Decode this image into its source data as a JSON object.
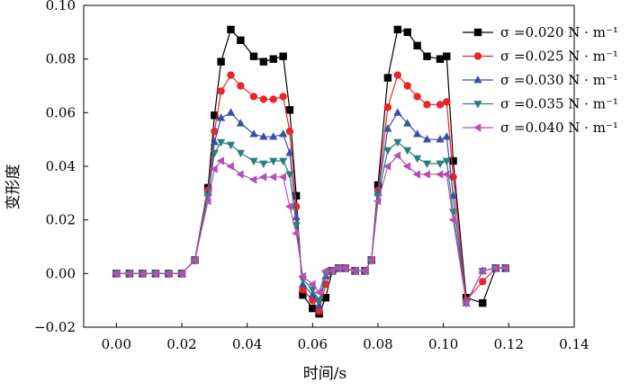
{
  "chart_data": {
    "type": "line",
    "title": "",
    "xlabel": "时间/s",
    "ylabel": "变形度",
    "xlim": [
      -0.01,
      0.14
    ],
    "ylim": [
      -0.02,
      0.1
    ],
    "xticks": [
      0.0,
      0.02,
      0.04,
      0.06,
      0.08,
      0.1,
      0.12,
      0.14
    ],
    "xtick_labels": [
      "0.00",
      "0.02",
      "0.04",
      "0.06",
      "0.08",
      "0.10",
      "0.12",
      "0.14"
    ],
    "yticks": [
      -0.02,
      0.0,
      0.02,
      0.04,
      0.06,
      0.08,
      0.1
    ],
    "ytick_labels": [
      "−0.02",
      "0.00",
      "0.02",
      "0.04",
      "0.06",
      "0.08",
      "0.10"
    ],
    "grid": false,
    "legend_position": "top-right",
    "x": [
      0.0,
      0.004,
      0.008,
      0.012,
      0.016,
      0.02,
      0.024,
      0.028,
      0.03,
      0.032,
      0.035,
      0.038,
      0.042,
      0.045,
      0.048,
      0.051,
      0.053,
      0.055,
      0.057,
      0.06,
      0.062,
      0.064,
      0.066,
      0.068,
      0.07,
      0.073,
      0.076,
      0.078,
      0.08,
      0.083,
      0.086,
      0.089,
      0.092,
      0.095,
      0.099,
      0.101,
      0.103,
      0.107,
      0.112,
      0.116,
      0.119
    ],
    "series": [
      {
        "name": "σ =0.020 N · m⁻¹",
        "color": "#000000",
        "marker": "square",
        "values": [
          0,
          0,
          0,
          0,
          0,
          0,
          0.005,
          0.032,
          0.059,
          0.079,
          0.091,
          0.087,
          0.081,
          0.079,
          0.08,
          0.081,
          0.061,
          0.029,
          -0.008,
          -0.013,
          -0.015,
          -0.009,
          0.001,
          0.002,
          0.002,
          0.001,
          0.001,
          0.005,
          0.033,
          0.073,
          0.091,
          0.09,
          0.085,
          0.081,
          0.08,
          0.081,
          0.042,
          -0.009,
          -0.011,
          0.002,
          0.002
        ]
      },
      {
        "name": "σ =0.025 N · m⁻¹",
        "color": "#e8262a",
        "marker": "circle",
        "values": [
          0,
          0,
          0,
          0,
          0,
          0,
          0.005,
          0.031,
          0.053,
          0.068,
          0.074,
          0.07,
          0.066,
          0.065,
          0.065,
          0.066,
          0.053,
          0.025,
          -0.006,
          -0.01,
          -0.014,
          -0.004,
          0.001,
          0.002,
          0.002,
          0.001,
          0.001,
          0.005,
          0.031,
          0.062,
          0.074,
          0.07,
          0.066,
          0.063,
          0.063,
          0.064,
          0.036,
          -0.01,
          -0.003,
          0.002,
          0.002
        ]
      },
      {
        "name": "σ =0.030 N · m⁻¹",
        "color": "#3a4fa8",
        "marker": "triangle-up",
        "values": [
          0,
          0,
          0,
          0,
          0,
          0,
          0.005,
          0.03,
          0.049,
          0.058,
          0.06,
          0.056,
          0.052,
          0.051,
          0.051,
          0.052,
          0.045,
          0.021,
          -0.004,
          -0.008,
          -0.012,
          -0.001,
          0.001,
          0.002,
          0.002,
          0.001,
          0.001,
          0.005,
          0.03,
          0.054,
          0.06,
          0.056,
          0.052,
          0.05,
          0.05,
          0.051,
          0.029,
          -0.011,
          0.001,
          0.002,
          0.002
        ]
      },
      {
        "name": "σ =0.035 N · m⁻¹",
        "color": "#2a7f7e",
        "marker": "triangle-down",
        "values": [
          0,
          0,
          0,
          0,
          0,
          0,
          0.005,
          0.029,
          0.045,
          0.049,
          0.048,
          0.045,
          0.042,
          0.041,
          0.042,
          0.042,
          0.037,
          0.018,
          -0.002,
          -0.006,
          -0.01,
          0.0,
          0.001,
          0.002,
          0.002,
          0.001,
          0.001,
          0.005,
          0.029,
          0.046,
          0.049,
          0.046,
          0.043,
          0.041,
          0.041,
          0.042,
          0.023,
          -0.011,
          0.001,
          0.002,
          0.002
        ]
      },
      {
        "name": "σ =0.040 N · m⁻¹",
        "color": "#b64fb3",
        "marker": "triangle-left",
        "values": [
          0,
          0,
          0,
          0,
          0,
          0,
          0.005,
          0.027,
          0.039,
          0.042,
          0.04,
          0.037,
          0.035,
          0.036,
          0.036,
          0.036,
          0.025,
          0.015,
          -0.001,
          -0.004,
          -0.007,
          0.001,
          0.001,
          0.002,
          0.002,
          0.001,
          0.001,
          0.005,
          0.027,
          0.04,
          0.044,
          0.04,
          0.037,
          0.037,
          0.037,
          0.037,
          0.02,
          -0.011,
          0.001,
          0.002,
          0.002
        ]
      }
    ]
  }
}
